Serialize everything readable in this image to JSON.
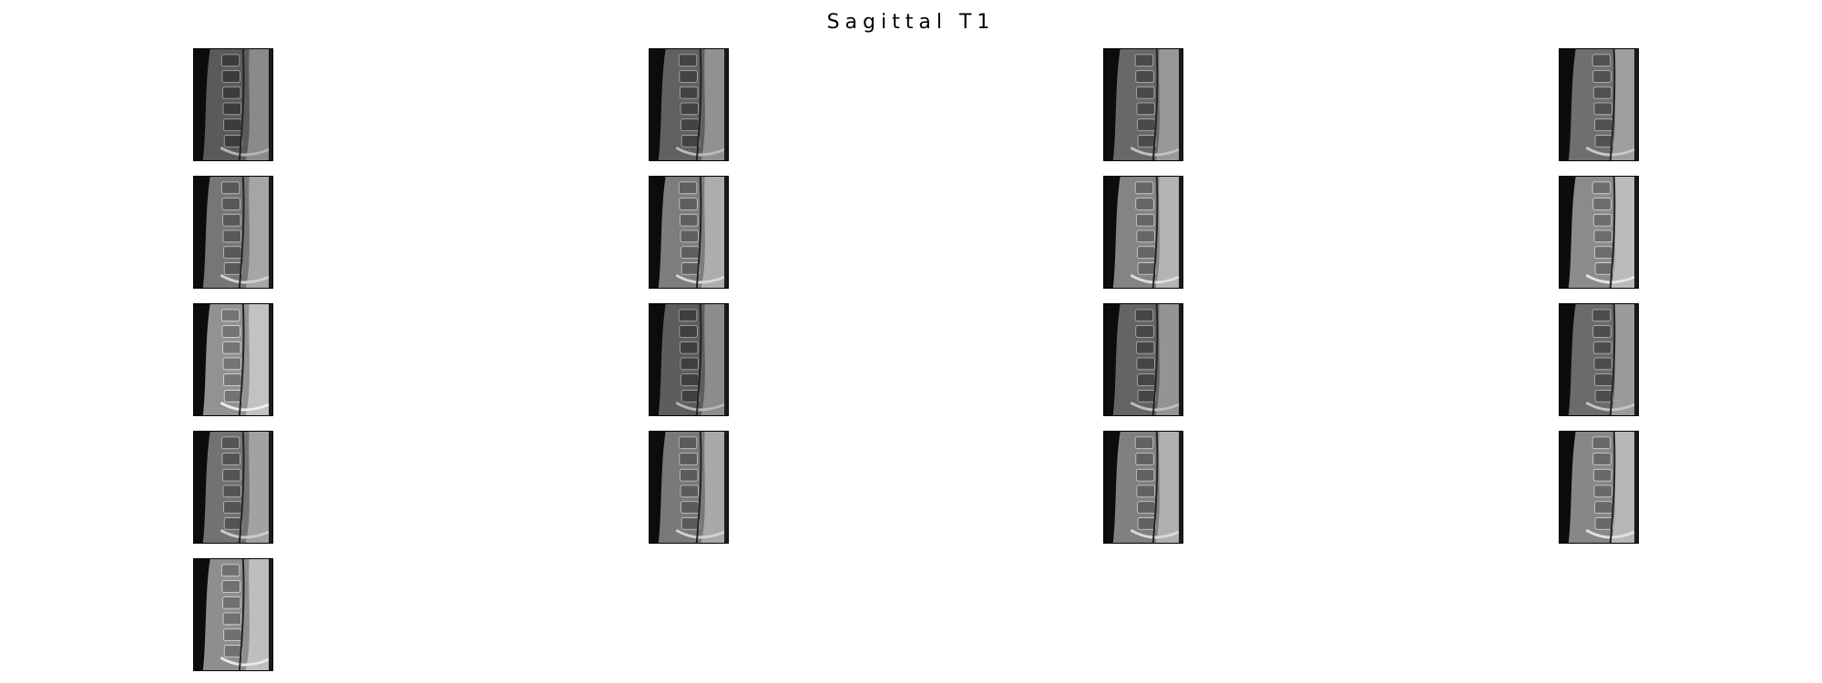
{
  "title": "Sagittal T1",
  "images": {
    "count": 17,
    "columns": 4,
    "items": [
      {
        "name": "slice-1"
      },
      {
        "name": "slice-2"
      },
      {
        "name": "slice-3"
      },
      {
        "name": "slice-4"
      },
      {
        "name": "slice-5"
      },
      {
        "name": "slice-6"
      },
      {
        "name": "slice-7"
      },
      {
        "name": "slice-8"
      },
      {
        "name": "slice-9"
      },
      {
        "name": "slice-10"
      },
      {
        "name": "slice-11"
      },
      {
        "name": "slice-12"
      },
      {
        "name": "slice-13"
      },
      {
        "name": "slice-14"
      },
      {
        "name": "slice-15"
      },
      {
        "name": "slice-16"
      },
      {
        "name": "slice-17"
      }
    ]
  }
}
